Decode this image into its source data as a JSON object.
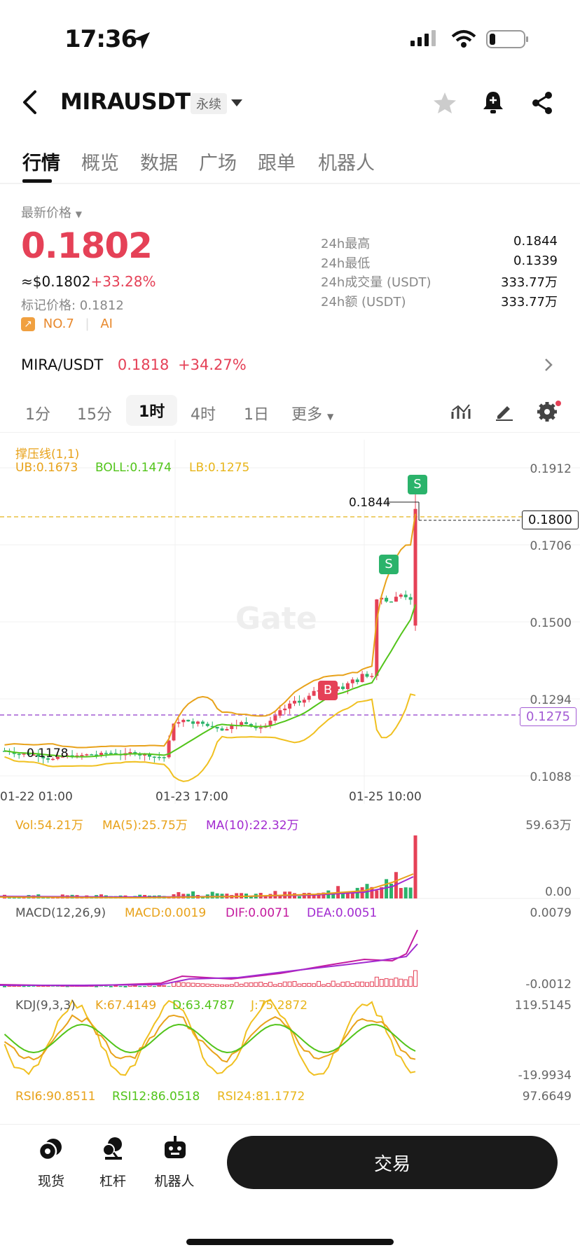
{
  "status": {
    "time": "17:36"
  },
  "header": {
    "title": "MIRAUSDT",
    "badge": "永续"
  },
  "tabs": [
    "行情",
    "概览",
    "数据",
    "广场",
    "跟单",
    "机器人"
  ],
  "price": {
    "label": "最新价格",
    "last": "0.1802",
    "usd": "≈$0.1802",
    "change": "+33.28%",
    "mark": "标记价格: 0.1812",
    "rank": "NO.7",
    "tag": "AI"
  },
  "stats": [
    {
      "label": "24h最高",
      "value": "0.1844"
    },
    {
      "label": "24h最低",
      "value": "0.1339"
    },
    {
      "label": "24h成交量 (USDT)",
      "value": "333.77万"
    },
    {
      "label": "24h额 (USDT)",
      "value": "333.77万"
    }
  ],
  "pair": {
    "name": "MIRA/USDT",
    "price": "0.1818",
    "change": "+34.27%"
  },
  "periods": [
    "1分",
    "15分",
    "1时",
    "4时",
    "1日",
    "更多"
  ],
  "main_chart": {
    "indicator": "撑压线(1,1)",
    "ub": "UB:0.1673",
    "boll": "BOLL:0.1474",
    "lb": "LB:0.1275",
    "y_ticks": [
      "0.1912",
      "0.1706",
      "0.1500",
      "0.1294",
      "0.1088"
    ],
    "x_ticks": [
      "01-22 01:00",
      "01-23 17:00",
      "01-25 10:00"
    ],
    "high_label": "0.1844",
    "low_label": "0.1178",
    "last_tag": "0.1800",
    "lb_tag": "0.1275",
    "watermark": "Gate",
    "sell_marker": "S",
    "buy_marker": "B"
  },
  "vol": {
    "label": "Vol:54.21万",
    "ma5": "MA(5):25.75万",
    "ma10": "MA(10):22.32万",
    "top": "59.63万",
    "bottom": "0.00"
  },
  "macd": {
    "label": "MACD(12,26,9)",
    "macd": "MACD:0.0019",
    "dif": "DIF:0.0071",
    "dea": "DEA:0.0051",
    "top": "0.0079",
    "bottom": "-0.0012"
  },
  "kdj": {
    "label": "KDJ(9,3,3)",
    "k": "K:67.4149",
    "d": "D:63.4787",
    "j": "J:75.2872",
    "top": "119.5145",
    "bottom": "-19.9934"
  },
  "rsi": {
    "r6": "RSI6:90.8511",
    "r12": "RSI12:86.0518",
    "r24": "RSI24:81.1772",
    "top": "97.6649"
  },
  "nav": {
    "spot": "现货",
    "margin": "杠杆",
    "bot": "机器人",
    "trade": "交易"
  },
  "colors": {
    "up": "#e54157",
    "down": "#2bb36b",
    "ub": "#e8a21a",
    "boll": "#52c41a",
    "lb": "#e8b51a",
    "macd_dif": "#c41a9e"
  }
}
